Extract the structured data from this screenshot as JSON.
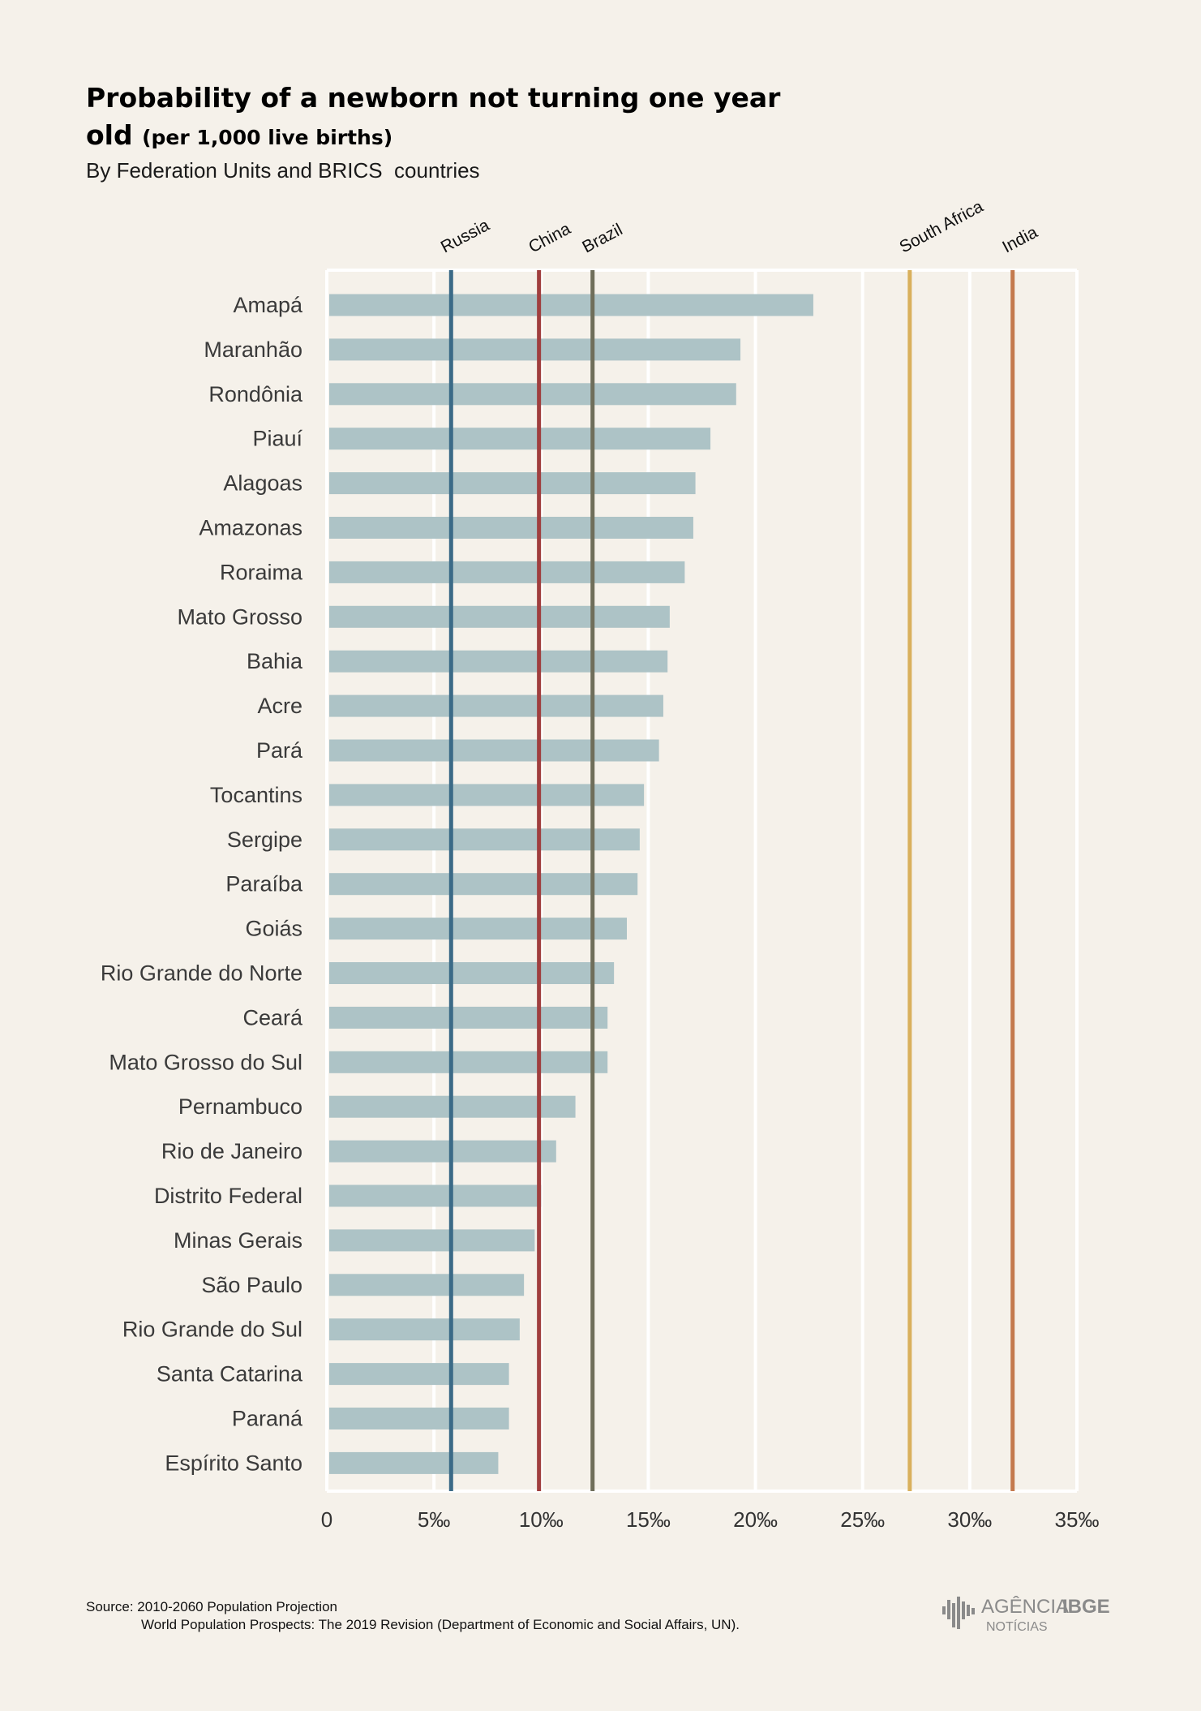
{
  "title": "Probability of a newborn not turning one year old",
  "title_unit": "(per 1,000 live births)",
  "subtitle": "By Federation Units and BRICS  countries",
  "source_line1": "Source: 2010-2060 Population Projection",
  "source_line2": "World Population Prospects: The 2019 Revision (Department of Economic and Social Affairs, UN).",
  "logo": {
    "brand": "AGÊNCIA",
    "brand_bold": "IBGE",
    "sub": "NOTÍCIAS"
  },
  "colors": {
    "bar": "#adc3c6",
    "grid": "#ffffff",
    "Russia": "#3b6a87",
    "China": "#a03e3e",
    "Brazil": "#6f6e5a",
    "South Africa": "#d9b05c",
    "India": "#c47a4e"
  },
  "chart_data": {
    "type": "bar",
    "orientation": "horizontal",
    "categories": [
      "Amapá",
      "Maranhão",
      "Rondônia",
      "Piauí",
      "Alagoas",
      "Amazonas",
      "Roraima",
      "Mato Grosso",
      "Bahia",
      "Acre",
      "Pará",
      "Tocantins",
      "Sergipe",
      "Paraíba",
      "Goiás",
      "Rio Grande do Norte",
      "Ceará",
      "Mato Grosso do Sul",
      "Pernambuco",
      "Rio de Janeiro",
      "Distrito Federal",
      "Minas Gerais",
      "São Paulo",
      "Rio Grande do Sul",
      "Santa Catarina",
      "Paraná",
      "Espírito Santo"
    ],
    "values": [
      22.7,
      19.3,
      19.1,
      17.9,
      17.2,
      17.1,
      16.7,
      16.0,
      15.9,
      15.7,
      15.5,
      14.8,
      14.6,
      14.5,
      14.0,
      13.4,
      13.1,
      13.1,
      11.6,
      10.7,
      10.0,
      9.7,
      9.2,
      9.0,
      8.5,
      8.5,
      8.0
    ],
    "reference_lines": [
      {
        "name": "Russia",
        "value": 5.8
      },
      {
        "name": "China",
        "value": 9.9
      },
      {
        "name": "Brazil",
        "value": 12.4
      },
      {
        "name": "South Africa",
        "value": 27.2
      },
      {
        "name": "India",
        "value": 32.0
      }
    ],
    "xlim": [
      0,
      35
    ],
    "xticks": [
      0,
      5,
      10,
      15,
      20,
      25,
      30,
      35
    ],
    "xtick_labels": [
      "0",
      "5‰",
      "10‰",
      "15‰",
      "20‰",
      "25‰",
      "30‰",
      "35‰"
    ],
    "grid": true
  }
}
